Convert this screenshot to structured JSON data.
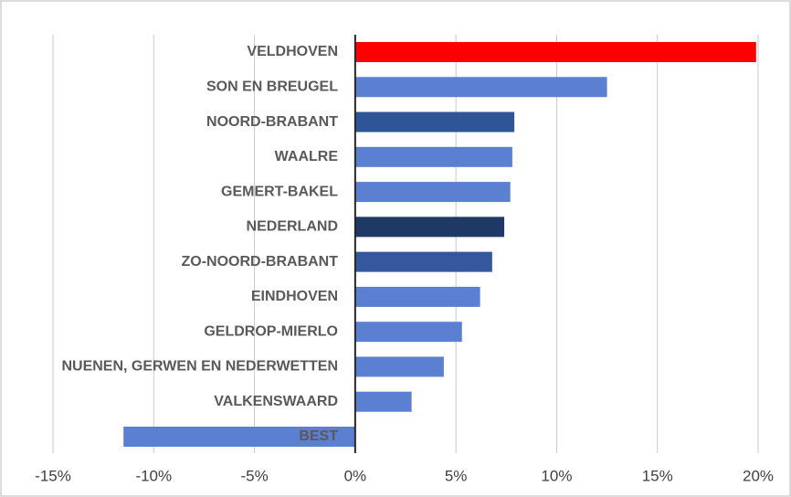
{
  "chart_data": {
    "type": "barh",
    "categories": [
      "VELDHOVEN",
      "SON EN BREUGEL",
      "NOORD-BRABANT",
      "WAALRE",
      "GEMERT-BAKEL",
      "NEDERLAND",
      "ZO-NOORD-BRABANT",
      "EINDHOVEN",
      "GELDROP-MIERLO",
      "NUENEN, GERWEN EN NEDERWETTEN",
      "VALKENSWAARD",
      "BEST"
    ],
    "values": [
      19.9,
      12.5,
      7.9,
      7.8,
      7.7,
      7.4,
      6.8,
      6.2,
      5.3,
      4.4,
      2.8,
      -11.5
    ],
    "colors": [
      "#ff0000",
      "#5b7fd1",
      "#2e5597",
      "#5b7fd1",
      "#5b7fd1",
      "#1f3864",
      "#34579e",
      "#5b7fd1",
      "#5b7fd1",
      "#5b7fd1",
      "#5b7fd1",
      "#5b7fd1"
    ],
    "xlim": [
      -15,
      20
    ],
    "xticks": [
      {
        "value": -15,
        "label": "-15%"
      },
      {
        "value": -10,
        "label": "-10%"
      },
      {
        "value": -5,
        "label": "-5%"
      },
      {
        "value": 0,
        "label": "0%"
      },
      {
        "value": 5,
        "label": "5%"
      },
      {
        "value": 10,
        "label": "10%"
      },
      {
        "value": 15,
        "label": "15%"
      },
      {
        "value": 20,
        "label": "20%"
      }
    ],
    "grid": true
  }
}
